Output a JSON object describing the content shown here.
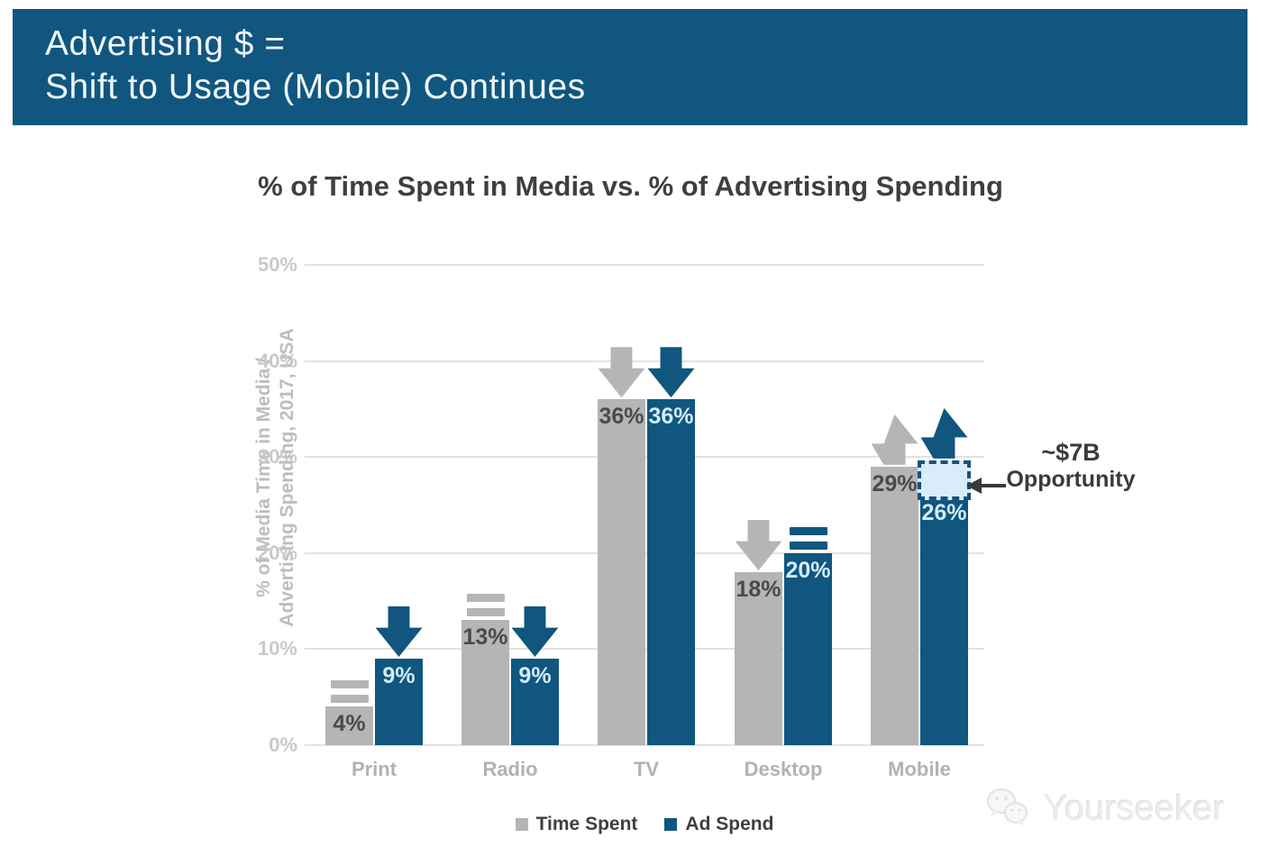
{
  "header": {
    "title_line1": "Advertising $ =",
    "title_line2": "Shift to Usage (Mobile) Continues"
  },
  "watermark": {
    "icon": "wechat-bubbles-icon",
    "text": "Yourseeker"
  },
  "chart_data": {
    "type": "bar",
    "title": "% of Time Spent in Media vs. % of Advertising Spending",
    "ylabel_line1": "% of Media Time in Media /",
    "ylabel_line2": "Advertising Spending, 2017, USA",
    "categories": [
      "Print",
      "Radio",
      "TV",
      "Desktop",
      "Mobile"
    ],
    "series": [
      {
        "name": "Time Spent",
        "color_key": "gray",
        "values": [
          4,
          13,
          36,
          18,
          29
        ],
        "labels": [
          "4%",
          "13%",
          "36%",
          "18%",
          "29%"
        ],
        "trends": [
          "flat",
          "flat",
          "down",
          "down",
          "up"
        ]
      },
      {
        "name": "Ad Spend",
        "color_key": "blue",
        "values": [
          9,
          9,
          36,
          20,
          26
        ],
        "labels": [
          "9%",
          "9%",
          "36%",
          "20%",
          "26%"
        ],
        "trends": [
          "down",
          "down",
          "down",
          "flat",
          "up"
        ]
      }
    ],
    "yticks": [
      {
        "value": 0,
        "label": "0%"
      },
      {
        "value": 10,
        "label": "10%"
      },
      {
        "value": 20,
        "label": "20%"
      },
      {
        "value": 30,
        "label": "30%"
      },
      {
        "value": 40,
        "label": "40%"
      },
      {
        "value": 50,
        "label": "50%"
      }
    ],
    "ylim": [
      0,
      50
    ],
    "grid": true,
    "legend_position": "bottom",
    "annotation": {
      "line1": "~$7B",
      "line2": "Opportunity",
      "category": "Mobile",
      "series": "Ad Spend",
      "span_from": 26,
      "span_to": 29
    }
  },
  "colors": {
    "banner_bg": "#10567E",
    "banner_text": "#eef6fb",
    "blue": "#10567E",
    "gray": "#b5b5b5",
    "title_text": "#3f3f3f",
    "ylabel_text": "#bdbdbd",
    "tick_text": "#c9c9c9",
    "category_text": "#b2b2b2",
    "gridline": "#e2e2e2",
    "value_on_gray": "#4a4a4a",
    "value_on_blue": "#d4ebf9",
    "opportunity_fill": "#d9ecf9",
    "opportunity_border": "#14527a",
    "annotation_text": "#3a3a3a",
    "watermark_text": "#ececec"
  }
}
